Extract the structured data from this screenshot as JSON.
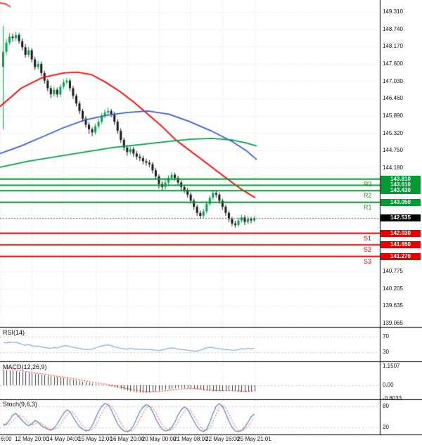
{
  "colors": {
    "bull_candle": "#00a14b",
    "bear_candle": "#1a1a1a",
    "ma_red": "#ff0000",
    "ma_blue": "#3a5fcd",
    "ma_green": "#00a14b",
    "resistance_line": "#009933",
    "support_line": "#e60000",
    "resistance_badge": "#009933",
    "support_badge": "#e60000",
    "current_badge": "#000000",
    "pivot_r_text": "#3c8a28",
    "pivot_s_text": "#e60000",
    "rsi_line": "#7fabdb",
    "macd_hist": "#3c3c3c",
    "macd_signal": "#ff0000",
    "stoch_k": "#4f81bd",
    "stoch_d": "#ff4040",
    "grid": "#dcdcdc",
    "separator": "#000000",
    "axis_text": "#111111"
  },
  "price_axis": {
    "labels": [
      {
        "text": "149.310",
        "price": 149.31
      },
      {
        "text": "148.740",
        "price": 148.74
      },
      {
        "text": "148.170",
        "price": 148.17
      },
      {
        "text": "147.600",
        "price": 147.6
      },
      {
        "text": "147.030",
        "price": 147.03
      },
      {
        "text": "146.460",
        "price": 146.46
      },
      {
        "text": "145.890",
        "price": 145.89
      },
      {
        "text": "145.320",
        "price": 145.32
      },
      {
        "text": "144.750",
        "price": 144.75
      },
      {
        "text": "144.180",
        "price": 144.18
      },
      {
        "text": "140.775",
        "price": 140.775
      },
      {
        "text": "140.205",
        "price": 140.205
      },
      {
        "text": "139.635",
        "price": 139.635
      },
      {
        "text": "139.065",
        "price": 139.065
      }
    ]
  },
  "price_badges": [
    {
      "text": "143.810",
      "price": 143.81,
      "type": "resistance"
    },
    {
      "text": "143.610",
      "price": 143.61,
      "type": "resistance"
    },
    {
      "text": "143.430",
      "price": 143.43,
      "type": "resistance"
    },
    {
      "text": "143.050",
      "price": 143.05,
      "type": "resistance"
    },
    {
      "text": "142.535",
      "price": 142.535,
      "type": "current"
    },
    {
      "text": "142.030",
      "price": 142.03,
      "type": "support"
    },
    {
      "text": "141.650",
      "price": 141.65,
      "type": "support"
    },
    {
      "text": "141.270",
      "price": 141.27,
      "type": "support"
    }
  ],
  "pivot_levels": {
    "resistance": [
      {
        "label": "R3",
        "price": 143.81
      },
      {
        "label": "",
        "price": 143.61
      },
      {
        "label": "R2",
        "price": 143.43
      },
      {
        "label": "R1",
        "price": 143.05
      }
    ],
    "support": [
      {
        "label": "S1",
        "price": 142.03
      },
      {
        "label": "S2",
        "price": 141.65
      },
      {
        "label": "S3",
        "price": 141.27
      }
    ],
    "current_price": 142.535
  },
  "time_axis": {
    "labels": [
      "6:00",
      "12 May 20:00",
      "14 May 04:00",
      "15 May 12:00",
      "16 May 20:00",
      "20 May 00:00",
      "21 May 08:00",
      "22 May 16:00",
      "25 May 21:01"
    ]
  },
  "chart_data": {
    "type": "candlestick",
    "price_range_visible": [
      139.065,
      149.31
    ],
    "candles_ohlc": [
      [
        147.5,
        148.85,
        145.45,
        148.0
      ],
      [
        148.0,
        148.42,
        147.9,
        148.3
      ],
      [
        148.3,
        148.62,
        148.22,
        148.5
      ],
      [
        148.5,
        148.6,
        148.33,
        148.45
      ],
      [
        148.45,
        148.66,
        148.36,
        148.55
      ],
      [
        148.55,
        148.62,
        148.26,
        148.35
      ],
      [
        148.35,
        148.44,
        148.05,
        148.15
      ],
      [
        148.15,
        148.25,
        147.8,
        147.9
      ],
      [
        147.9,
        148.16,
        147.82,
        148.05
      ],
      [
        148.05,
        148.12,
        147.65,
        147.75
      ],
      [
        147.75,
        147.84,
        147.4,
        147.5
      ],
      [
        147.5,
        147.7,
        147.42,
        147.6
      ],
      [
        147.6,
        147.68,
        147.2,
        147.3
      ],
      [
        147.3,
        147.38,
        146.95,
        147.05
      ],
      [
        147.05,
        147.12,
        146.7,
        146.8
      ],
      [
        146.8,
        146.88,
        146.48,
        146.6
      ],
      [
        146.6,
        146.84,
        146.52,
        146.75
      ],
      [
        146.75,
        146.82,
        146.5,
        146.6
      ],
      [
        146.6,
        146.93,
        146.52,
        146.85
      ],
      [
        146.85,
        147.1,
        146.77,
        147.0
      ],
      [
        147.0,
        147.14,
        146.92,
        147.05
      ],
      [
        147.05,
        147.12,
        146.7,
        146.8
      ],
      [
        146.8,
        146.88,
        146.45,
        146.55
      ],
      [
        146.55,
        146.62,
        146.2,
        146.3
      ],
      [
        146.3,
        146.38,
        145.95,
        146.05
      ],
      [
        146.05,
        146.12,
        145.7,
        145.8
      ],
      [
        145.8,
        145.88,
        145.5,
        145.6
      ],
      [
        145.6,
        145.68,
        145.3,
        145.45
      ],
      [
        145.45,
        145.52,
        145.22,
        145.35
      ],
      [
        145.35,
        145.64,
        145.27,
        145.55
      ],
      [
        145.55,
        145.8,
        145.47,
        145.7
      ],
      [
        145.7,
        145.99,
        145.62,
        145.9
      ],
      [
        145.9,
        146.1,
        145.82,
        146.0
      ],
      [
        146.0,
        146.16,
        145.92,
        146.05
      ],
      [
        146.05,
        146.12,
        145.85,
        145.95
      ],
      [
        145.95,
        146.02,
        145.6,
        145.7
      ],
      [
        145.7,
        145.78,
        145.3,
        145.4
      ],
      [
        145.4,
        145.48,
        145.0,
        145.1
      ],
      [
        145.1,
        145.17,
        144.75,
        144.85
      ],
      [
        144.85,
        144.92,
        144.58,
        144.7
      ],
      [
        144.7,
        144.9,
        144.62,
        144.8
      ],
      [
        144.8,
        144.87,
        144.55,
        144.65
      ],
      [
        144.65,
        144.73,
        144.45,
        144.55
      ],
      [
        144.55,
        144.64,
        144.4,
        144.5
      ],
      [
        144.5,
        144.58,
        144.3,
        144.4
      ],
      [
        144.4,
        144.48,
        144.25,
        144.35
      ],
      [
        144.35,
        144.44,
        144.2,
        144.3
      ],
      [
        144.3,
        144.37,
        144.0,
        144.1
      ],
      [
        144.1,
        144.17,
        143.8,
        143.9
      ],
      [
        143.9,
        143.97,
        143.5,
        143.65
      ],
      [
        143.65,
        143.74,
        143.45,
        143.55
      ],
      [
        143.55,
        143.79,
        143.47,
        143.7
      ],
      [
        143.7,
        143.94,
        143.62,
        143.85
      ],
      [
        143.85,
        144.04,
        143.77,
        143.95
      ],
      [
        143.95,
        144.02,
        143.76,
        143.85
      ],
      [
        143.85,
        143.92,
        143.6,
        143.7
      ],
      [
        143.7,
        143.77,
        143.42,
        143.55
      ],
      [
        143.55,
        143.62,
        143.35,
        143.45
      ],
      [
        143.45,
        143.52,
        143.2,
        143.3
      ],
      [
        143.3,
        143.37,
        143.0,
        143.1
      ],
      [
        143.1,
        143.17,
        142.8,
        142.9
      ],
      [
        142.9,
        142.97,
        142.6,
        142.7
      ],
      [
        142.7,
        142.78,
        142.5,
        142.6
      ],
      [
        142.6,
        142.84,
        142.53,
        142.75
      ],
      [
        142.75,
        143.08,
        142.68,
        143.0
      ],
      [
        143.0,
        143.28,
        142.93,
        143.2
      ],
      [
        143.2,
        143.46,
        143.12,
        143.35
      ],
      [
        143.35,
        143.43,
        143.2,
        143.3
      ],
      [
        143.3,
        143.37,
        143.0,
        143.1
      ],
      [
        143.1,
        143.17,
        142.8,
        142.9
      ],
      [
        142.9,
        142.96,
        142.6,
        142.7
      ],
      [
        142.7,
        142.77,
        142.4,
        142.5
      ],
      [
        142.5,
        142.57,
        142.26,
        142.35
      ],
      [
        142.35,
        142.44,
        142.22,
        142.3
      ],
      [
        142.3,
        142.54,
        142.24,
        142.45
      ],
      [
        142.45,
        142.64,
        142.38,
        142.55
      ],
      [
        142.55,
        142.62,
        142.3,
        142.4
      ],
      [
        142.4,
        142.59,
        142.33,
        142.5
      ],
      [
        142.5,
        142.57,
        142.36,
        142.45
      ],
      [
        142.45,
        142.6,
        142.4,
        142.535
      ]
    ],
    "moving_averages": [
      {
        "name": "ma-red",
        "color_key": "ma_red",
        "points": [
          [
            0,
            146.2
          ],
          [
            30,
            146.8
          ],
          [
            60,
            147.15
          ],
          [
            90,
            147.3
          ],
          [
            110,
            147.33
          ],
          [
            130,
            147.25
          ],
          [
            150,
            147.0
          ],
          [
            170,
            146.7
          ],
          [
            190,
            146.35
          ],
          [
            210,
            145.95
          ],
          [
            230,
            145.55
          ],
          [
            250,
            145.1
          ],
          [
            270,
            144.75
          ],
          [
            290,
            144.4
          ],
          [
            310,
            144.05
          ],
          [
            330,
            143.7
          ],
          [
            345,
            143.45
          ],
          [
            363,
            143.2
          ]
        ]
      },
      {
        "name": "ma-blue",
        "color_key": "ma_blue",
        "points": [
          [
            0,
            144.65
          ],
          [
            30,
            144.9
          ],
          [
            60,
            145.2
          ],
          [
            90,
            145.5
          ],
          [
            120,
            145.75
          ],
          [
            150,
            145.9
          ],
          [
            180,
            146.0
          ],
          [
            210,
            146.05
          ],
          [
            240,
            145.95
          ],
          [
            270,
            145.7
          ],
          [
            300,
            145.4
          ],
          [
            330,
            145.05
          ],
          [
            350,
            144.75
          ],
          [
            365,
            144.45
          ]
        ]
      },
      {
        "name": "ma-green",
        "color_key": "ma_green",
        "points": [
          [
            0,
            144.2
          ],
          [
            40,
            144.4
          ],
          [
            80,
            144.55
          ],
          [
            120,
            144.7
          ],
          [
            160,
            144.85
          ],
          [
            200,
            144.95
          ],
          [
            240,
            145.05
          ],
          [
            270,
            145.12
          ],
          [
            300,
            145.15
          ],
          [
            330,
            145.1
          ],
          [
            350,
            145.0
          ],
          [
            365,
            144.9
          ]
        ]
      }
    ],
    "rsi": {
      "title": "RSI(14)",
      "levels": [
        70,
        30
      ],
      "values": [
        55,
        54,
        56,
        55,
        56,
        53,
        50,
        48,
        50,
        47,
        45,
        46,
        44,
        42,
        41,
        40,
        42,
        41,
        44,
        46,
        47,
        45,
        43,
        41,
        40,
        38,
        37,
        37,
        38,
        41,
        44,
        46,
        48,
        49,
        47,
        44,
        42,
        40,
        39,
        38,
        40,
        39,
        38,
        38,
        38,
        37,
        37,
        36,
        35,
        34,
        36,
        38,
        40,
        41,
        40,
        38,
        37,
        36,
        35,
        34,
        33,
        33,
        35,
        38,
        41,
        43,
        42,
        40,
        39,
        38,
        37,
        36,
        35,
        35,
        37,
        39,
        38,
        40,
        39,
        40
      ]
    },
    "macd": {
      "title": "MACD(12,26,9)",
      "axis_labels": [
        "1.1507",
        "0.00",
        "-0.8033"
      ],
      "histogram": [
        0.95,
        0.93,
        0.9,
        0.88,
        0.85,
        0.82,
        0.8,
        0.78,
        0.75,
        0.72,
        0.7,
        0.68,
        0.65,
        0.62,
        0.58,
        0.55,
        0.52,
        0.5,
        0.48,
        0.45,
        0.42,
        0.38,
        0.35,
        0.3,
        0.26,
        0.22,
        0.18,
        0.14,
        0.1,
        0.07,
        0.04,
        0.02,
        0,
        -0.03,
        -0.07,
        -0.12,
        -0.17,
        -0.22,
        -0.27,
        -0.32,
        -0.36,
        -0.4,
        -0.43,
        -0.45,
        -0.46,
        -0.45,
        -0.43,
        -0.4,
        -0.37,
        -0.33,
        -0.3,
        -0.27,
        -0.24,
        -0.21,
        -0.18,
        -0.16,
        -0.15,
        -0.15,
        -0.16,
        -0.18,
        -0.21,
        -0.24,
        -0.27,
        -0.3,
        -0.33,
        -0.35,
        -0.36,
        -0.36,
        -0.35,
        -0.34,
        -0.33,
        -0.33,
        -0.34,
        -0.36,
        -0.38,
        -0.4,
        -0.41,
        -0.4,
        -0.38,
        -0.36
      ],
      "signal": [
        1.05,
        1.03,
        1,
        0.97,
        0.94,
        0.9,
        0.87,
        0.84,
        0.81,
        0.78,
        0.75,
        0.73,
        0.7,
        0.67,
        0.64,
        0.6,
        0.57,
        0.55,
        0.52,
        0.5,
        0.47,
        0.44,
        0.41,
        0.38,
        0.34,
        0.3,
        0.26,
        0.22,
        0.18,
        0.15,
        0.12,
        0.09,
        0.06,
        0.03,
        0,
        -0.04,
        -0.08,
        -0.12,
        -0.16,
        -0.2,
        -0.24,
        -0.28,
        -0.31,
        -0.34,
        -0.37,
        -0.39,
        -0.4,
        -0.4,
        -0.39,
        -0.38,
        -0.36,
        -0.34,
        -0.31,
        -0.28,
        -0.26,
        -0.24,
        -0.22,
        -0.2,
        -0.19,
        -0.19,
        -0.2,
        -0.21,
        -0.23,
        -0.25,
        -0.27,
        -0.29,
        -0.31,
        -0.32,
        -0.33,
        -0.33,
        -0.33,
        -0.33,
        -0.33,
        -0.34,
        -0.35,
        -0.36,
        -0.37,
        -0.37,
        -0.36,
        -0.35
      ]
    },
    "stoch": {
      "title": "Stoch(9,6,3)",
      "levels": [
        80,
        20
      ],
      "k": [
        25,
        30,
        40,
        55,
        60,
        50,
        40,
        30,
        25,
        30,
        40,
        35,
        25,
        20,
        15,
        12,
        18,
        30,
        45,
        60,
        70,
        65,
        50,
        35,
        22,
        15,
        10,
        12,
        25,
        45,
        65,
        80,
        88,
        85,
        70,
        50,
        30,
        18,
        10,
        8,
        12,
        25,
        45,
        65,
        78,
        85,
        80,
        65,
        45,
        28,
        15,
        10,
        12,
        20,
        35,
        55,
        70,
        78,
        72,
        55,
        38,
        22,
        12,
        8,
        15,
        35,
        60,
        80,
        88,
        80,
        60,
        38,
        20,
        10,
        8,
        12,
        20,
        35,
        50,
        58
      ],
      "d": [
        30,
        28,
        30,
        38,
        48,
        55,
        52,
        42,
        32,
        27,
        30,
        35,
        32,
        25,
        19,
        15,
        14,
        18,
        28,
        42,
        56,
        65,
        63,
        50,
        36,
        24,
        16,
        12,
        14,
        24,
        42,
        60,
        76,
        84,
        81,
        68,
        50,
        32,
        18,
        11,
        9,
        14,
        26,
        44,
        62,
        76,
        81,
        76,
        62,
        44,
        28,
        17,
        12,
        13,
        21,
        36,
        53,
        67,
        73,
        68,
        54,
        37,
        23,
        13,
        11,
        18,
        36,
        58,
        76,
        82,
        76,
        58,
        38,
        22,
        12,
        10,
        14,
        22,
        35,
        48
      ]
    }
  }
}
